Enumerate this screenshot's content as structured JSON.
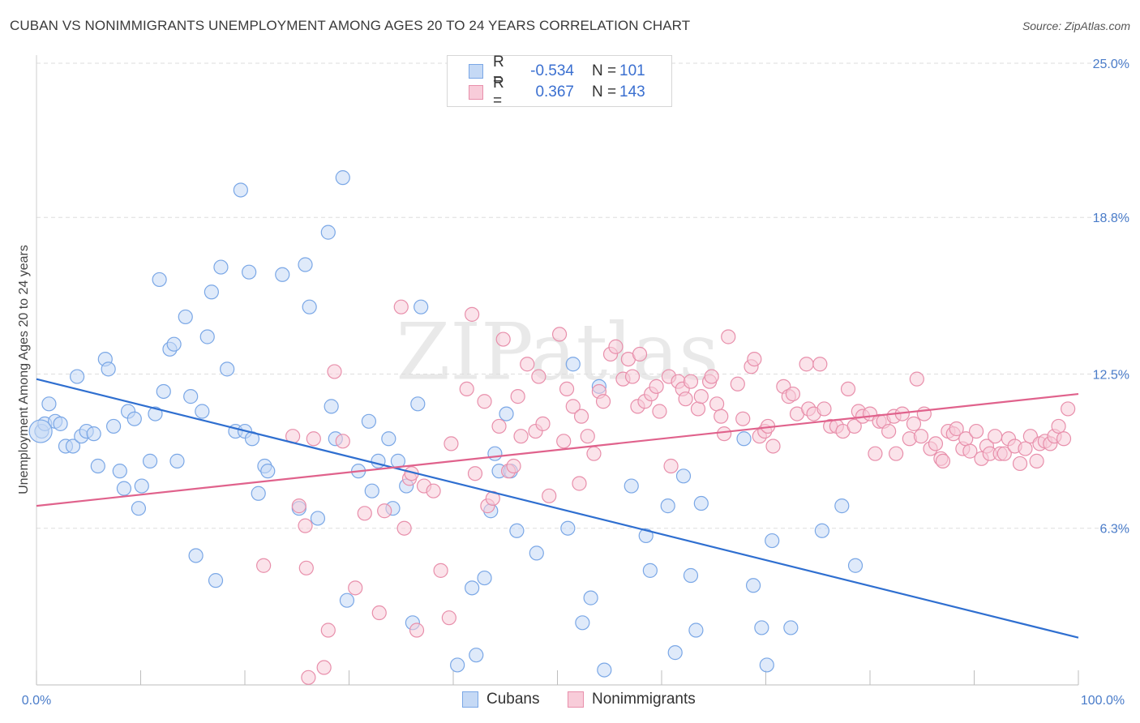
{
  "title": "CUBAN VS NONIMMIGRANTS UNEMPLOYMENT AMONG AGES 20 TO 24 YEARS CORRELATION CHART",
  "source": "Source: ZipAtlas.com",
  "watermark": "ZIPatlas",
  "colors": {
    "cubans": "#7aa7e6",
    "cubans_fill": "#c5d9f5",
    "cubans_line": "#2f6fd0",
    "nonimmigrants": "#e88fab",
    "nonimmigrants_fill": "#f8ccd9",
    "nonimmigrants_line": "#e0628c",
    "tick": "#4a7cc9"
  },
  "legend": {
    "rows": [
      {
        "r_label": "R =",
        "r_value": "-0.534",
        "n_label": "N =",
        "n_value": "101"
      },
      {
        "r_label": "R =",
        "r_value": "0.367",
        "n_label": "N =",
        "n_value": "143"
      }
    ]
  },
  "bottom_legend": {
    "cubans": "Cubans",
    "nonimmigrants": "Nonimmigrants"
  },
  "chart_data": {
    "type": "scatter",
    "title": "CUBAN VS NONIMMIGRANTS UNEMPLOYMENT AMONG AGES 20 TO 24 YEARS CORRELATION CHART",
    "xlabel": "",
    "ylabel": "Unemployment Among Ages 20 to 24 years",
    "xlim": [
      0,
      100
    ],
    "ylim": [
      0,
      25.0
    ],
    "x_tick_labels": [
      "0.0%",
      "100.0%"
    ],
    "y_ticks": [
      6.3,
      12.5,
      18.8,
      25.0
    ],
    "y_tick_labels": [
      "6.3%",
      "12.5%",
      "18.8%",
      "25.0%"
    ],
    "grid": true,
    "series": [
      {
        "name": "Cubans",
        "r": -0.534,
        "n": 101,
        "trend": [
          [
            0,
            12.3
          ],
          [
            100,
            1.9
          ]
        ],
        "points": [
          [
            0.5,
            10.2
          ],
          [
            0.8,
            10.5
          ],
          [
            1.2,
            11.3
          ],
          [
            1.8,
            10.6
          ],
          [
            2.3,
            10.5
          ],
          [
            2.8,
            9.6
          ],
          [
            3.5,
            9.6
          ],
          [
            3.9,
            12.4
          ],
          [
            4.3,
            10.0
          ],
          [
            4.8,
            10.2
          ],
          [
            5.5,
            10.1
          ],
          [
            5.9,
            8.8
          ],
          [
            6.6,
            13.1
          ],
          [
            6.9,
            12.7
          ],
          [
            7.4,
            10.4
          ],
          [
            8.0,
            8.6
          ],
          [
            8.4,
            7.9
          ],
          [
            8.8,
            11.0
          ],
          [
            9.4,
            10.7
          ],
          [
            9.8,
            7.1
          ],
          [
            10.1,
            8.0
          ],
          [
            10.9,
            9.0
          ],
          [
            11.4,
            10.9
          ],
          [
            11.8,
            16.3
          ],
          [
            12.2,
            11.8
          ],
          [
            12.8,
            13.5
          ],
          [
            13.2,
            13.7
          ],
          [
            13.5,
            9.0
          ],
          [
            14.3,
            14.8
          ],
          [
            14.8,
            11.6
          ],
          [
            15.3,
            5.2
          ],
          [
            15.9,
            11.0
          ],
          [
            16.4,
            14.0
          ],
          [
            16.8,
            15.8
          ],
          [
            17.2,
            4.2
          ],
          [
            17.7,
            16.8
          ],
          [
            18.3,
            12.7
          ],
          [
            19.1,
            10.2
          ],
          [
            19.6,
            19.9
          ],
          [
            20.0,
            10.2
          ],
          [
            20.4,
            16.6
          ],
          [
            20.7,
            9.9
          ],
          [
            21.3,
            7.7
          ],
          [
            21.9,
            8.8
          ],
          [
            22.2,
            8.6
          ],
          [
            23.6,
            16.5
          ],
          [
            25.2,
            7.1
          ],
          [
            25.8,
            16.9
          ],
          [
            26.2,
            15.2
          ],
          [
            27.0,
            6.7
          ],
          [
            28.0,
            18.2
          ],
          [
            28.3,
            11.2
          ],
          [
            28.7,
            9.9
          ],
          [
            29.4,
            20.4
          ],
          [
            29.8,
            3.4
          ],
          [
            30.9,
            8.6
          ],
          [
            31.9,
            10.6
          ],
          [
            32.2,
            7.8
          ],
          [
            32.8,
            9.0
          ],
          [
            33.8,
            9.9
          ],
          [
            34.2,
            7.1
          ],
          [
            34.7,
            9.0
          ],
          [
            35.5,
            8.0
          ],
          [
            36.1,
            2.5
          ],
          [
            36.6,
            11.3
          ],
          [
            36.9,
            15.2
          ],
          [
            40.4,
            0.8
          ],
          [
            41.8,
            3.9
          ],
          [
            42.2,
            1.2
          ],
          [
            43.0,
            4.3
          ],
          [
            43.6,
            7.0
          ],
          [
            44.0,
            9.3
          ],
          [
            44.4,
            8.6
          ],
          [
            45.1,
            10.9
          ],
          [
            45.5,
            8.6
          ],
          [
            46.1,
            6.2
          ],
          [
            48.0,
            5.3
          ],
          [
            51.0,
            6.3
          ],
          [
            51.5,
            12.9
          ],
          [
            52.4,
            2.5
          ],
          [
            53.2,
            3.5
          ],
          [
            54.0,
            12.0
          ],
          [
            54.5,
            0.6
          ],
          [
            57.1,
            8.0
          ],
          [
            58.5,
            6.0
          ],
          [
            58.9,
            4.6
          ],
          [
            60.6,
            7.2
          ],
          [
            61.3,
            1.3
          ],
          [
            62.1,
            8.4
          ],
          [
            62.8,
            4.4
          ],
          [
            63.3,
            2.2
          ],
          [
            63.8,
            7.3
          ],
          [
            67.9,
            9.9
          ],
          [
            68.8,
            4.0
          ],
          [
            69.6,
            2.3
          ],
          [
            70.1,
            0.8
          ],
          [
            70.6,
            5.8
          ],
          [
            72.4,
            2.3
          ],
          [
            75.4,
            6.2
          ],
          [
            77.3,
            7.2
          ],
          [
            78.6,
            4.8
          ]
        ]
      },
      {
        "name": "Nonimmigrants",
        "r": 0.367,
        "n": 143,
        "trend": [
          [
            0,
            7.2
          ],
          [
            100,
            11.7
          ]
        ],
        "points": [
          [
            21.8,
            4.8
          ],
          [
            24.6,
            10.0
          ],
          [
            25.2,
            7.2
          ],
          [
            25.8,
            6.4
          ],
          [
            25.9,
            4.7
          ],
          [
            26.1,
            0.3
          ],
          [
            26.6,
            9.9
          ],
          [
            27.6,
            0.7
          ],
          [
            28.0,
            2.2
          ],
          [
            28.6,
            12.6
          ],
          [
            29.4,
            9.8
          ],
          [
            30.6,
            3.9
          ],
          [
            31.5,
            6.9
          ],
          [
            32.9,
            2.9
          ],
          [
            33.4,
            7.0
          ],
          [
            35.0,
            15.2
          ],
          [
            35.3,
            6.3
          ],
          [
            35.8,
            8.3
          ],
          [
            36.0,
            8.5
          ],
          [
            36.5,
            2.2
          ],
          [
            37.2,
            8.0
          ],
          [
            38.1,
            7.8
          ],
          [
            38.8,
            4.6
          ],
          [
            39.6,
            2.7
          ],
          [
            39.8,
            9.7
          ],
          [
            41.3,
            11.9
          ],
          [
            41.8,
            14.9
          ],
          [
            42.1,
            8.5
          ],
          [
            43.0,
            11.4
          ],
          [
            43.3,
            7.2
          ],
          [
            43.8,
            7.5
          ],
          [
            44.4,
            10.4
          ],
          [
            44.8,
            13.9
          ],
          [
            45.3,
            8.6
          ],
          [
            45.8,
            8.8
          ],
          [
            46.2,
            11.6
          ],
          [
            46.5,
            10.0
          ],
          [
            47.1,
            12.9
          ],
          [
            47.9,
            10.2
          ],
          [
            48.2,
            12.4
          ],
          [
            48.6,
            10.5
          ],
          [
            49.2,
            7.6
          ],
          [
            50.2,
            14.1
          ],
          [
            50.6,
            9.8
          ],
          [
            50.9,
            11.9
          ],
          [
            51.5,
            11.2
          ],
          [
            52.1,
            8.1
          ],
          [
            52.3,
            10.8
          ],
          [
            52.9,
            10.0
          ],
          [
            53.5,
            9.3
          ],
          [
            54.0,
            11.8
          ],
          [
            54.4,
            11.4
          ],
          [
            55.1,
            13.3
          ],
          [
            55.6,
            13.6
          ],
          [
            56.3,
            12.3
          ],
          [
            56.8,
            13.1
          ],
          [
            57.2,
            12.4
          ],
          [
            57.7,
            11.2
          ],
          [
            57.9,
            13.3
          ],
          [
            58.4,
            11.4
          ],
          [
            59.0,
            11.7
          ],
          [
            59.5,
            12.0
          ],
          [
            59.8,
            11.0
          ],
          [
            60.7,
            12.4
          ],
          [
            60.9,
            8.8
          ],
          [
            61.6,
            12.2
          ],
          [
            62.0,
            11.9
          ],
          [
            62.3,
            11.5
          ],
          [
            62.8,
            12.2
          ],
          [
            63.5,
            11.1
          ],
          [
            63.8,
            11.6
          ],
          [
            64.6,
            12.2
          ],
          [
            64.8,
            12.4
          ],
          [
            65.3,
            11.3
          ],
          [
            65.7,
            10.8
          ],
          [
            66.0,
            10.1
          ],
          [
            66.4,
            14.0
          ],
          [
            67.3,
            12.1
          ],
          [
            67.8,
            10.7
          ],
          [
            68.6,
            12.8
          ],
          [
            68.9,
            13.1
          ],
          [
            69.4,
            10.0
          ],
          [
            69.9,
            10.2
          ],
          [
            70.2,
            10.4
          ],
          [
            70.7,
            9.6
          ],
          [
            71.7,
            12.0
          ],
          [
            72.2,
            11.6
          ],
          [
            72.6,
            11.7
          ],
          [
            73.0,
            10.9
          ],
          [
            73.9,
            12.9
          ],
          [
            74.1,
            11.1
          ],
          [
            74.6,
            10.9
          ],
          [
            75.2,
            12.9
          ],
          [
            75.6,
            11.1
          ],
          [
            76.2,
            10.4
          ],
          [
            76.8,
            10.4
          ],
          [
            77.4,
            10.2
          ],
          [
            77.9,
            11.9
          ],
          [
            78.5,
            10.4
          ],
          [
            78.9,
            11.0
          ],
          [
            79.3,
            10.8
          ],
          [
            80.0,
            10.9
          ],
          [
            80.5,
            9.3
          ],
          [
            80.9,
            10.6
          ],
          [
            81.3,
            10.6
          ],
          [
            81.8,
            10.2
          ],
          [
            82.3,
            10.8
          ],
          [
            82.5,
            9.3
          ],
          [
            83.1,
            10.9
          ],
          [
            83.8,
            9.9
          ],
          [
            84.2,
            10.5
          ],
          [
            84.5,
            12.3
          ],
          [
            84.9,
            10.0
          ],
          [
            85.2,
            10.9
          ],
          [
            85.8,
            9.5
          ],
          [
            86.3,
            9.7
          ],
          [
            86.8,
            9.1
          ],
          [
            87.0,
            9.0
          ],
          [
            87.5,
            10.2
          ],
          [
            88.0,
            10.1
          ],
          [
            88.3,
            10.3
          ],
          [
            88.9,
            9.5
          ],
          [
            89.2,
            9.9
          ],
          [
            89.6,
            9.4
          ],
          [
            90.2,
            10.2
          ],
          [
            90.7,
            9.1
          ],
          [
            91.2,
            9.6
          ],
          [
            91.5,
            9.3
          ],
          [
            92.0,
            10.0
          ],
          [
            92.5,
            9.3
          ],
          [
            92.9,
            9.3
          ],
          [
            93.3,
            9.9
          ],
          [
            93.9,
            9.6
          ],
          [
            94.4,
            8.9
          ],
          [
            94.9,
            9.5
          ],
          [
            95.4,
            10.0
          ],
          [
            96.0,
            9.0
          ],
          [
            96.3,
            9.7
          ],
          [
            96.8,
            9.8
          ],
          [
            97.3,
            9.7
          ],
          [
            97.7,
            10.0
          ],
          [
            98.1,
            10.4
          ],
          [
            98.6,
            9.9
          ],
          [
            99.0,
            11.1
          ]
        ]
      }
    ]
  }
}
